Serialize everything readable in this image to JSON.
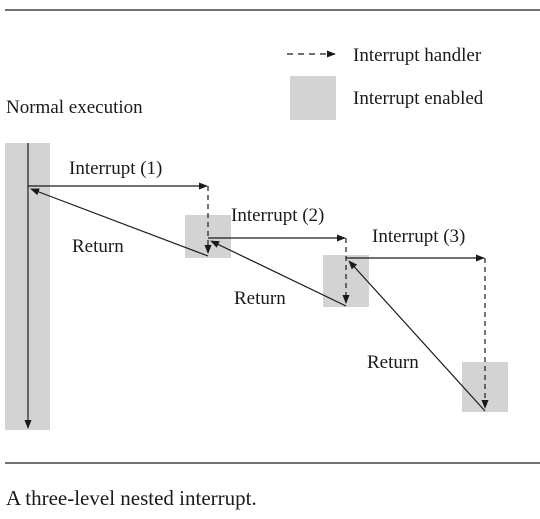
{
  "legend": {
    "handler_label": "Interrupt handler",
    "enabled_label": "Interrupt enabled"
  },
  "diagram": {
    "normal_label": "Normal execution",
    "interrupts": [
      {
        "label": "Interrupt (1)",
        "return_label": "Return"
      },
      {
        "label": "Interrupt (2)",
        "return_label": "Return"
      },
      {
        "label": "Interrupt (3)",
        "return_label": "Return"
      }
    ]
  },
  "caption": "A three-level nested interrupt.",
  "colors": {
    "enabled_fill": "#d3d3d3",
    "ink": "#1a1a1a"
  }
}
